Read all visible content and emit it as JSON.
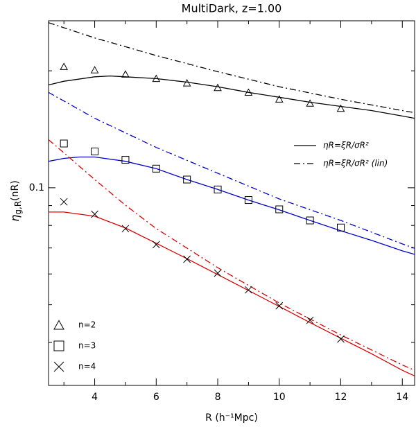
{
  "chart_data": {
    "type": "line",
    "title": "MultiDark, z=1.00",
    "xlabel": "R (h⁻¹Mpc)",
    "ylabel": [
      "η",
      "g,R",
      "(nR)"
    ],
    "log_y": true,
    "xlim": [
      2.5,
      14.4
    ],
    "xticks": [
      4,
      6,
      8,
      10,
      12,
      14
    ],
    "x_minor_ticks": [
      3,
      5,
      7,
      9,
      11,
      13
    ],
    "ylim": [
      0.031,
      0.269
    ],
    "yticks": [
      0.1
    ],
    "y_minor_ticks": [
      0.04,
      0.05,
      0.06,
      0.07,
      0.08,
      0.09,
      0.2
    ],
    "series": [
      {
        "name": "n=2",
        "marker": "triangle",
        "color": "#000000",
        "x": [
          3,
          4,
          5,
          6,
          7,
          8,
          9,
          10,
          11,
          12
        ],
        "values": [
          0.205,
          0.201,
          0.196,
          0.191,
          0.186,
          0.181,
          0.176,
          0.169,
          0.165,
          0.16
        ]
      },
      {
        "name": "n=3",
        "marker": "square",
        "color": "#000000",
        "x": [
          3,
          4,
          5,
          6,
          7,
          8,
          9,
          10,
          11,
          12
        ],
        "values": [
          0.13,
          0.124,
          0.118,
          0.112,
          0.105,
          0.099,
          0.093,
          0.088,
          0.0824,
          0.079
        ]
      },
      {
        "name": "n=4",
        "marker": "cross",
        "color": "#000000",
        "x": [
          3,
          4,
          5,
          6,
          7,
          8,
          9,
          10,
          11,
          12
        ],
        "values": [
          0.092,
          0.0855,
          0.0785,
          0.0714,
          0.0655,
          0.0603,
          0.0546,
          0.0497,
          0.0456,
          0.0408
        ]
      }
    ],
    "curves": [
      {
        "style": "solid",
        "color": "#000000",
        "x": [
          2.5,
          3,
          4,
          4.5,
          5,
          6,
          7,
          8,
          9,
          10,
          11,
          12,
          13,
          14,
          14.4
        ],
        "values": [
          0.184,
          0.188,
          0.193,
          0.194,
          0.193,
          0.191,
          0.187,
          0.182,
          0.176,
          0.171,
          0.166,
          0.162,
          0.158,
          0.153,
          0.151
        ]
      },
      {
        "style": "dashdot",
        "color": "#000000",
        "x": [
          2.5,
          4,
          6,
          8,
          10,
          12,
          14,
          14.4
        ],
        "values": [
          0.266,
          0.243,
          0.219,
          0.199,
          0.182,
          0.169,
          0.158,
          0.156
        ]
      },
      {
        "style": "solid",
        "color": "#0000cc",
        "x": [
          2.5,
          3,
          3.5,
          4,
          5,
          6,
          7,
          8,
          9,
          10,
          11,
          12,
          13,
          14,
          14.4
        ],
        "values": [
          0.117,
          0.119,
          0.12,
          0.12,
          0.117,
          0.112,
          0.105,
          0.099,
          0.093,
          0.0877,
          0.0824,
          0.0775,
          0.0732,
          0.0688,
          0.0674
        ]
      },
      {
        "style": "dashdot",
        "color": "#0000cc",
        "x": [
          2.5,
          4,
          6,
          8,
          10,
          12,
          14,
          14.4
        ],
        "values": [
          0.176,
          0.151,
          0.127,
          0.109,
          0.0936,
          0.0824,
          0.0717,
          0.0699
        ]
      },
      {
        "style": "solid",
        "color": "#dd0000",
        "x": [
          2.5,
          3,
          4,
          5,
          6,
          7,
          8,
          9,
          10,
          11,
          12,
          13,
          14,
          14.4
        ],
        "values": [
          0.0866,
          0.0866,
          0.0845,
          0.0788,
          0.072,
          0.0657,
          0.0598,
          0.0544,
          0.0495,
          0.045,
          0.041,
          0.0374,
          0.0339,
          0.0328
        ]
      },
      {
        "style": "dashdot",
        "color": "#dd0000",
        "x": [
          2.5,
          3,
          4,
          5,
          6,
          8,
          10,
          12,
          14,
          14.4
        ],
        "values": [
          0.133,
          0.123,
          0.105,
          0.0902,
          0.0785,
          0.0623,
          0.0505,
          0.0418,
          0.035,
          0.0339
        ]
      }
    ],
    "line_legend": [
      {
        "name": "ηR=ξR/σR²",
        "style": "solid"
      },
      {
        "name": "ηR=ξR/σR² (lin)",
        "style": "dashdot"
      }
    ]
  }
}
